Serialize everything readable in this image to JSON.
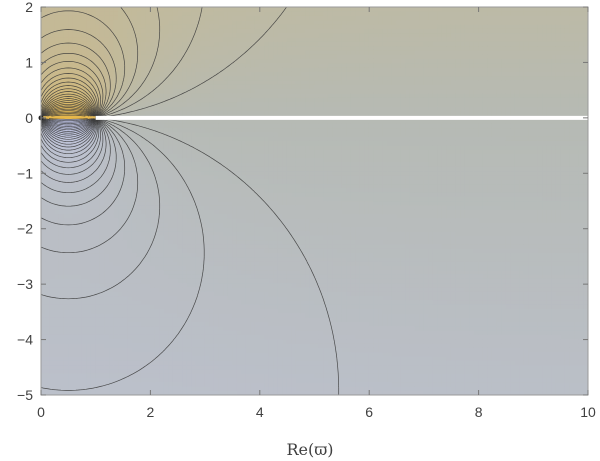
{
  "chart_data": {
    "type": "contour",
    "title": "",
    "xlabel": "Re(ϖ)",
    "ylabel": "",
    "xlim": [
      0,
      10
    ],
    "ylim": [
      -5,
      2
    ],
    "x_ticks": [
      0,
      2,
      4,
      6,
      8,
      10
    ],
    "y_ticks": [
      -5,
      -4,
      -3,
      -2,
      -1,
      0,
      1,
      2
    ],
    "grid": false,
    "legend": "none",
    "branch_cut": {
      "from": [
        1,
        0
      ],
      "to": [
        10,
        0
      ]
    },
    "singular_point": [
      0,
      0
    ],
    "colormap": {
      "upper_warm": "#e8b84a",
      "lower_cool": "#c4caf2",
      "cut_color": "#ffffff",
      "contour_line": "#3b3b3b"
    }
  }
}
